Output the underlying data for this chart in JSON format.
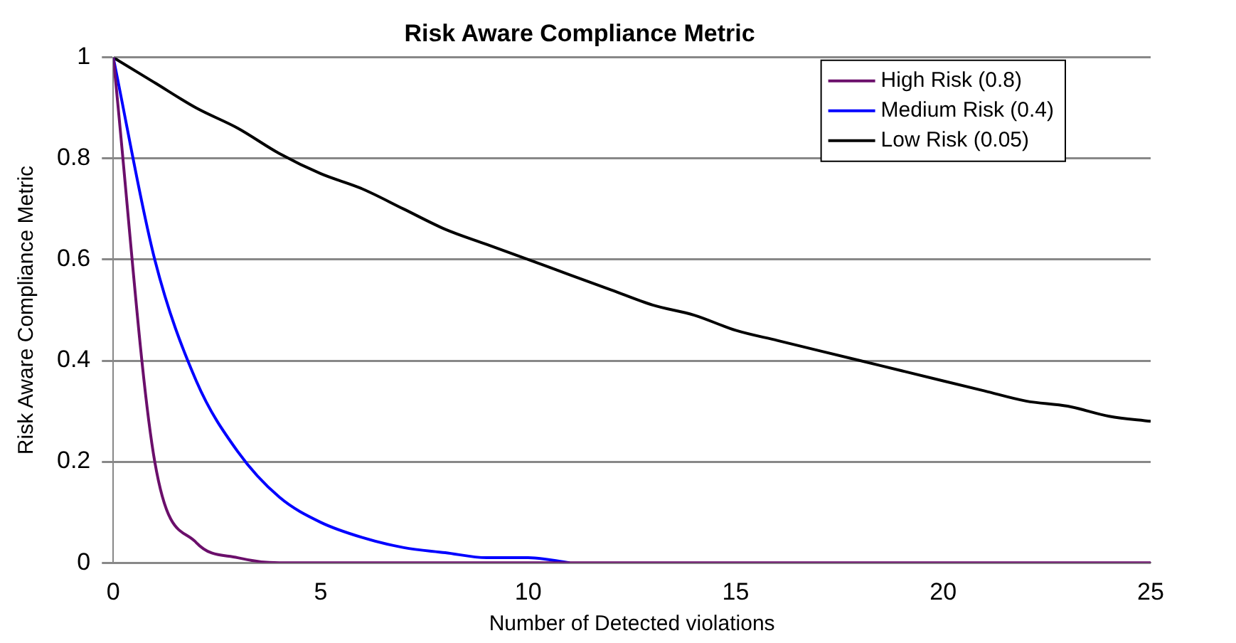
{
  "chart_data": {
    "type": "line",
    "title": "Risk Aware Compliance Metric",
    "xlabel": "Number of Detected violations",
    "ylabel": "Risk Aware Compliance Metric",
    "x": [
      0,
      1,
      2,
      3,
      4,
      5,
      6,
      7,
      8,
      9,
      10,
      11,
      12,
      13,
      14,
      15,
      16,
      17,
      18,
      19,
      20,
      21,
      22,
      23,
      24,
      25
    ],
    "series": [
      {
        "name": "High Risk (0.8)",
        "color": "#6b0f6b",
        "values": [
          1,
          0.2,
          0.04,
          0.01,
          0,
          0,
          0,
          0,
          0,
          0,
          0,
          0,
          0,
          0,
          0,
          0,
          0,
          0,
          0,
          0,
          0,
          0,
          0,
          0,
          0,
          0
        ]
      },
      {
        "name": "Medium Risk (0.4)",
        "color": "#0000ff",
        "values": [
          1,
          0.6,
          0.36,
          0.22,
          0.13,
          0.08,
          0.05,
          0.03,
          0.02,
          0.01,
          0.01,
          0,
          null,
          null,
          null,
          null,
          null,
          null,
          null,
          null,
          null,
          null,
          null,
          null,
          null,
          null
        ]
      },
      {
        "name": "Low Risk (0.05)",
        "color": "#000000",
        "values": [
          1,
          0.95,
          0.9,
          0.86,
          0.81,
          0.77,
          0.74,
          0.7,
          0.66,
          0.63,
          0.6,
          0.57,
          0.54,
          0.51,
          0.49,
          0.46,
          0.44,
          0.42,
          0.4,
          0.38,
          0.36,
          0.34,
          0.32,
          0.31,
          0.29,
          0.28
        ]
      }
    ],
    "xlim": [
      0,
      25
    ],
    "xticks": [
      0,
      5,
      10,
      15,
      20,
      25
    ],
    "ylim": [
      0,
      1
    ],
    "yticks": [
      0,
      0.2,
      0.4,
      0.6,
      0.8,
      1
    ],
    "grid": "y",
    "legend": "top right",
    "marker": "none",
    "line_style": "solid"
  }
}
